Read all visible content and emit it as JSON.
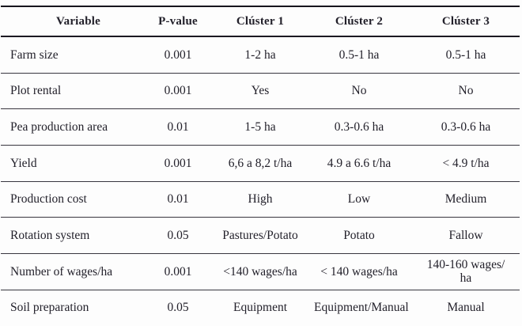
{
  "table": {
    "columns": [
      "Variable",
      "P-value",
      "Clúster 1",
      "Clúster 2",
      "Clúster 3"
    ],
    "rows": [
      [
        "Farm size",
        "0.001",
        "1-2 ha",
        "0.5-1 ha",
        "0.5-1 ha"
      ],
      [
        "Plot rental",
        "0.001",
        "Yes",
        "No",
        "No"
      ],
      [
        "Pea production area",
        "0.01",
        "1-5 ha",
        "0.3-0.6 ha",
        "0.3-0.6 ha"
      ],
      [
        "Yield",
        "0.001",
        "6,6 a 8,2 t/ha",
        "4.9 a 6.6 t/ha",
        "< 4.9 t/ha"
      ],
      [
        "Production cost",
        "0.01",
        "High",
        "Low",
        "Medium"
      ],
      [
        "Rotation system",
        "0.05",
        "Pastures/Potato",
        "Potato",
        "Fallow"
      ],
      [
        "Number of wages/ha",
        "0.001",
        "<140 wages/ha",
        "< 140 wages/ha",
        "140-160 wages/\nha"
      ],
      [
        "Soil preparation",
        "0.05",
        "Equipment",
        "Equipment/Manual",
        "Manual"
      ]
    ],
    "colors": {
      "text": "#23212b",
      "rule_heavy": "#17151d",
      "rule_light": "#38363f",
      "background": "#fdfdfd"
    }
  }
}
